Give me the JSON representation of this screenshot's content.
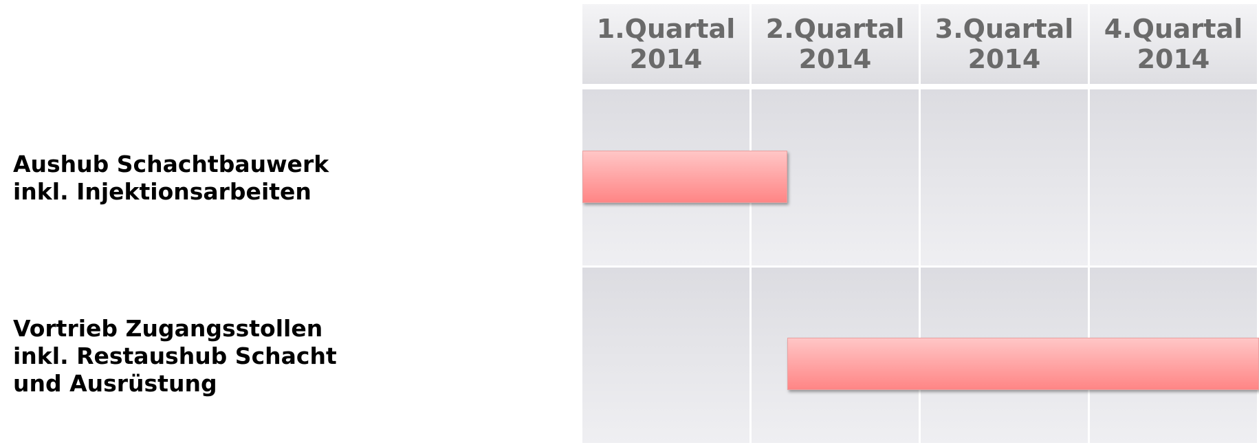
{
  "chart_data": {
    "type": "gantt",
    "categories": [
      "1.Quartal\n2014",
      "2.Quartal\n2014",
      "3.Quartal\n2014",
      "4.Quartal\n2014"
    ],
    "xlim": [
      0,
      4
    ],
    "color": "#ff8585",
    "tasks": [
      {
        "name": "Aushub Schachtbauwerk\ninkl. Injektionsarbeiten",
        "start": 0,
        "end": 1.21
      },
      {
        "name": "Vortrieb Zugangsstollen\ninkl. Restaushub Schacht\nund Ausrüstung",
        "start": 1.21,
        "end": 4
      }
    ]
  }
}
